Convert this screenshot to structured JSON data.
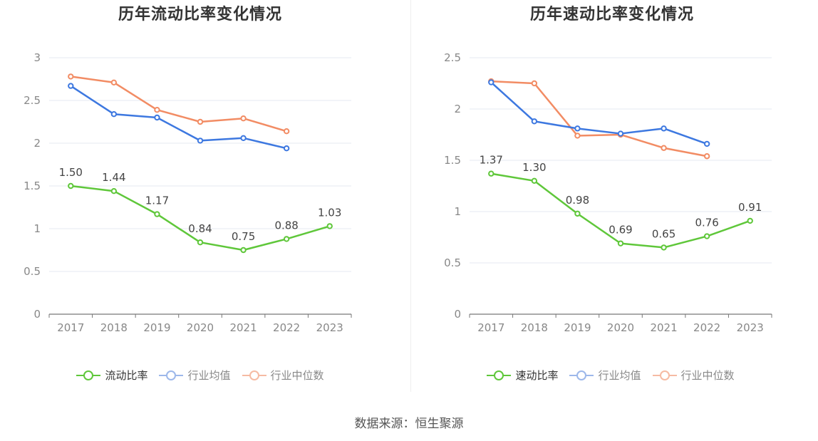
{
  "source": "数据来源：恒生聚源",
  "chart_data": [
    {
      "type": "line",
      "title": "历年流动比率变化情况",
      "categories": [
        "2017",
        "2018",
        "2019",
        "2020",
        "2021",
        "2022",
        "2023"
      ],
      "yticks": [
        "0",
        "0.5",
        "1",
        "1.5",
        "2",
        "2.5",
        "3"
      ],
      "ylim": [
        0,
        3
      ],
      "grid": true,
      "legend_position": "bottom",
      "series": [
        {
          "name": "流动比率",
          "color": "#5fc73a",
          "values": [
            1.5,
            1.44,
            1.17,
            0.84,
            0.75,
            0.88,
            1.03
          ],
          "labels": [
            "1.50",
            "1.44",
            "1.17",
            "0.84",
            "0.75",
            "0.88",
            "1.03"
          ]
        },
        {
          "name": "行业均值",
          "color": "#3d78e0",
          "values": [
            2.67,
            2.34,
            2.3,
            2.03,
            2.06,
            1.94,
            null
          ]
        },
        {
          "name": "行业中位数",
          "color": "#f28c64",
          "values": [
            2.78,
            2.71,
            2.39,
            2.25,
            2.29,
            2.14,
            null
          ]
        }
      ]
    },
    {
      "type": "line",
      "title": "历年速动比率变化情况",
      "categories": [
        "2017",
        "2018",
        "2019",
        "2020",
        "2021",
        "2022",
        "2023"
      ],
      "yticks": [
        "0",
        "0.5",
        "1",
        "1.5",
        "2",
        "2.5"
      ],
      "ylim": [
        0,
        2.5
      ],
      "grid": true,
      "legend_position": "bottom",
      "series": [
        {
          "name": "速动比率",
          "color": "#5fc73a",
          "values": [
            1.37,
            1.3,
            0.98,
            0.69,
            0.65,
            0.76,
            0.91
          ],
          "labels": [
            "1.37",
            "1.30",
            "0.98",
            "0.69",
            "0.65",
            "0.76",
            "0.91"
          ]
        },
        {
          "name": "行业均值",
          "color": "#3d78e0",
          "values": [
            2.26,
            1.88,
            1.81,
            1.76,
            1.81,
            1.66,
            null
          ]
        },
        {
          "name": "行业中位数",
          "color": "#f28c64",
          "values": [
            2.27,
            2.25,
            1.74,
            1.75,
            1.62,
            1.54,
            null
          ]
        }
      ]
    }
  ]
}
